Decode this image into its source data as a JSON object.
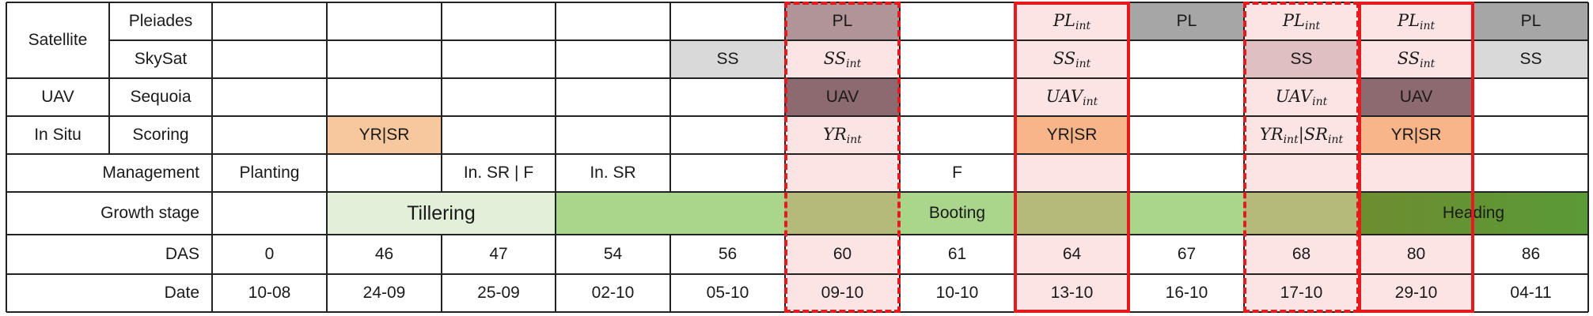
{
  "colors": {
    "pl": "#b09497",
    "pl_grey": "#a6a6a6",
    "ss": "#d9d9d9",
    "ss_pinkish": "#dfbfc1",
    "uav": "#8c6a6f",
    "int_pink": "#fde4e4",
    "yr_sr_light": "#f7c89d",
    "yr_sr": "#f8b58a",
    "tillering": "#e2f0d9",
    "booting": "#a9d68b",
    "booting_overlay": "#b5ba7a",
    "heading_dark": "#6d8d2f",
    "heading_light": "#5a9a37",
    "red_frame": "#e41a1c",
    "grid": "#222222"
  },
  "row_labels": {
    "satellite": "Satellite",
    "pleiades": "Pleiades",
    "skysat": "SkySat",
    "uav": "UAV",
    "sequoia": "Sequoia",
    "in_situ": "In Situ",
    "scoring": "Scoring",
    "management": "Management",
    "growth_stage": "Growth stage",
    "das": "DAS",
    "date": "Date"
  },
  "das": [
    "0",
    "46",
    "47",
    "54",
    "56",
    "60",
    "61",
    "64",
    "67",
    "68",
    "80",
    "86"
  ],
  "dates": [
    "10-08",
    "24-09",
    "25-09",
    "02-10",
    "05-10",
    "09-10",
    "10-10",
    "13-10",
    "16-10",
    "17-10",
    "29-10",
    "04-11"
  ],
  "management": [
    "Planting",
    "",
    "In. SR | F",
    "In. SR",
    "",
    "",
    "F",
    "",
    "",
    "",
    "",
    ""
  ],
  "growth_stages": {
    "tillering": "Tillering",
    "booting": "Booting",
    "heading": "Heading"
  },
  "pleiades": [
    "",
    "",
    "",
    "",
    "",
    "PL",
    "",
    "PL_int",
    "PL",
    "PL_int",
    "PL_int",
    "PL"
  ],
  "skysat": [
    "",
    "",
    "",
    "",
    "SS",
    "SS_int",
    "",
    "SS_int",
    "",
    "SS",
    "SS_int",
    "SS"
  ],
  "sequoia": [
    "",
    "",
    "",
    "",
    "",
    "UAV",
    "",
    "UAV_int",
    "",
    "UAV_int",
    "UAV",
    ""
  ],
  "scoring": [
    "",
    "YR|SR",
    "",
    "",
    "",
    "YR_int",
    "",
    "YR|SR",
    "",
    "YR_int|SR_int",
    "YR|SR",
    ""
  ]
}
